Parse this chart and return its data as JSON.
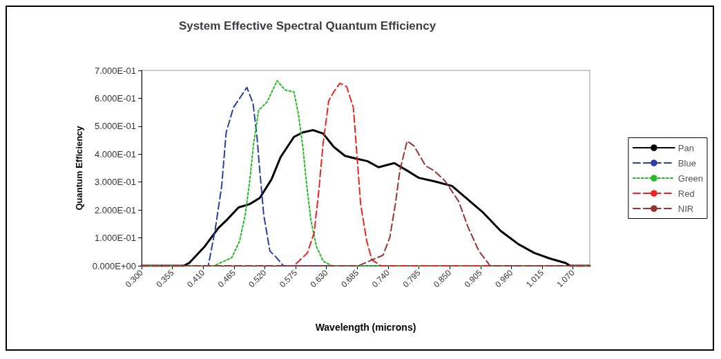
{
  "chart_data": {
    "type": "line",
    "title": "System Effective Spectral Quantum Efficiency",
    "xlabel": "Wavelength (microns)",
    "ylabel": "Quantum Efficiency",
    "xlim": [
      0.3,
      1.1
    ],
    "xticks": [
      {
        "value": 0.3,
        "label": "0.300"
      },
      {
        "value": 0.355,
        "label": "0.355"
      },
      {
        "value": 0.41,
        "label": "0.410"
      },
      {
        "value": 0.465,
        "label": "0.465"
      },
      {
        "value": 0.52,
        "label": "0.520"
      },
      {
        "value": 0.575,
        "label": "0.575"
      },
      {
        "value": 0.63,
        "label": "0.630"
      },
      {
        "value": 0.685,
        "label": "0.685"
      },
      {
        "value": 0.74,
        "label": "0.740"
      },
      {
        "value": 0.795,
        "label": "0.795"
      },
      {
        "value": 0.85,
        "label": "0.850"
      },
      {
        "value": 0.905,
        "label": "0.905"
      },
      {
        "value": 0.96,
        "label": "0.960"
      },
      {
        "value": 1.015,
        "label": "1.015"
      },
      {
        "value": 1.07,
        "label": "1.070"
      }
    ],
    "ylim": [
      0,
      0.7
    ],
    "yticks": [
      {
        "value": 0,
        "label": "0.000E+00"
      },
      {
        "value": 0.1,
        "label": "1.000E-01"
      },
      {
        "value": 0.2,
        "label": "2.000E-01"
      },
      {
        "value": 0.3,
        "label": "3.000E-01"
      },
      {
        "value": 0.4,
        "label": "4.000E-01"
      },
      {
        "value": 0.5,
        "label": "5.000E-01"
      },
      {
        "value": 0.6,
        "label": "6.000E-01"
      },
      {
        "value": 0.7,
        "label": "7.000E-01"
      }
    ],
    "grid": false,
    "legend": "right",
    "marker": "none",
    "series": [
      {
        "name": "Pan",
        "color": "#000000",
        "line_style": "solid",
        "x": [
          0.3,
          0.375,
          0.385,
          0.413,
          0.437,
          0.453,
          0.473,
          0.493,
          0.511,
          0.532,
          0.548,
          0.572,
          0.588,
          0.606,
          0.624,
          0.643,
          0.663,
          0.687,
          0.703,
          0.723,
          0.751,
          0.774,
          0.795,
          0.822,
          0.854,
          0.878,
          0.91,
          0.941,
          0.973,
          1.001,
          1.029,
          1.057,
          1.065,
          1.1
        ],
        "values": [
          0,
          0,
          0.01,
          0.07,
          0.135,
          0.166,
          0.209,
          0.221,
          0.243,
          0.31,
          0.389,
          0.462,
          0.478,
          0.486,
          0.474,
          0.426,
          0.394,
          0.382,
          0.375,
          0.353,
          0.368,
          0.341,
          0.315,
          0.303,
          0.286,
          0.245,
          0.19,
          0.125,
          0.077,
          0.046,
          0.026,
          0.01,
          0,
          0
        ]
      },
      {
        "name": "Blue",
        "color": "#2a3ea8",
        "line_style": "dashed",
        "x": [
          0.3,
          0.419,
          0.431,
          0.443,
          0.451,
          0.464,
          0.476,
          0.488,
          0.499,
          0.506,
          0.511,
          0.518,
          0.529,
          0.541,
          0.553,
          1.1
        ],
        "values": [
          0,
          0,
          0.125,
          0.286,
          0.478,
          0.567,
          0.603,
          0.639,
          0.582,
          0.462,
          0.341,
          0.183,
          0.053,
          0.029,
          0,
          0
        ]
      },
      {
        "name": "Green",
        "color": "#22bb22",
        "line_style": "dotted",
        "x": [
          0.3,
          0.429,
          0.461,
          0.475,
          0.485,
          0.493,
          0.5,
          0.509,
          0.524,
          0.542,
          0.556,
          0.572,
          0.58,
          0.588,
          0.594,
          0.602,
          0.612,
          0.624,
          0.64,
          1.1
        ],
        "values": [
          0,
          0,
          0.029,
          0.089,
          0.183,
          0.303,
          0.438,
          0.558,
          0.587,
          0.663,
          0.63,
          0.623,
          0.543,
          0.423,
          0.303,
          0.166,
          0.07,
          0.017,
          0,
          0
        ]
      },
      {
        "name": "Red",
        "color": "#ee2222",
        "line_style": "dashed",
        "x": [
          0.3,
          0.572,
          0.596,
          0.608,
          0.616,
          0.624,
          0.634,
          0.643,
          0.654,
          0.666,
          0.678,
          0.685,
          0.691,
          0.702,
          0.711,
          0.727,
          1.1
        ],
        "values": [
          0,
          0,
          0.046,
          0.118,
          0.262,
          0.438,
          0.591,
          0.623,
          0.654,
          0.642,
          0.567,
          0.382,
          0.221,
          0.087,
          0.022,
          0,
          0
        ]
      },
      {
        "name": "NIR",
        "color": "#993333",
        "line_style": "dashed",
        "x": [
          0.3,
          0.687,
          0.731,
          0.743,
          0.753,
          0.761,
          0.774,
          0.786,
          0.807,
          0.822,
          0.842,
          0.866,
          0.882,
          0.902,
          0.917,
          0.922,
          1.1
        ],
        "values": [
          0,
          0,
          0.038,
          0.101,
          0.221,
          0.341,
          0.447,
          0.43,
          0.358,
          0.341,
          0.303,
          0.231,
          0.142,
          0.053,
          0.014,
          0,
          0
        ]
      }
    ]
  }
}
